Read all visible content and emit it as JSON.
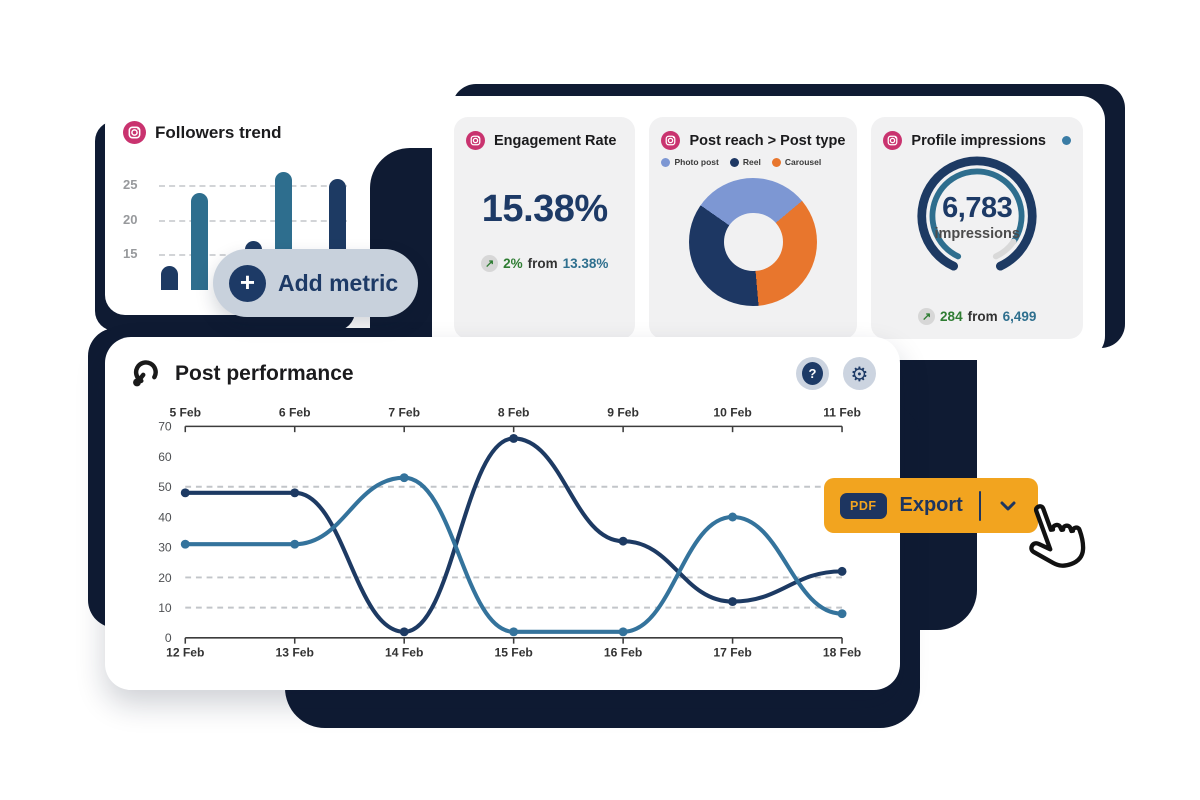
{
  "cards": {
    "followers": {
      "title": "Followers trend"
    },
    "metrics_card": {
      "engagement": {
        "title": "Engagement Rate",
        "value": "15.38%",
        "arrow": "↗",
        "delta": "2%",
        "from": "from",
        "previous": "13.38%"
      },
      "post_reach": {
        "title": "Post reach > Post type",
        "legend": [
          {
            "label": "Photo post",
            "color": "#7d97d3"
          },
          {
            "label": "Reel",
            "color": "#1d3763"
          },
          {
            "label": "Carousel",
            "color": "#e8762d"
          }
        ]
      },
      "impressions": {
        "title": "Profile impressions",
        "value": "6,783",
        "unit": "impressions",
        "arrow": "↗",
        "delta": "284",
        "from": "from",
        "previous": "6,499"
      }
    },
    "performance": {
      "title": "Post performance",
      "help_glyph": "?",
      "settings_glyph": "⚙"
    }
  },
  "buttons": {
    "add_metric": {
      "plus": "+",
      "label": "Add metric"
    },
    "export": {
      "badge": "PDF",
      "label": "Export"
    }
  },
  "colors": {
    "navy_dark": "#0f1b33",
    "navy": "#1d3a63",
    "teal": "#2e6e8e",
    "orange": "#e8762d",
    "periwinkle": "#7d97d3",
    "export_orange": "#f2a41f",
    "pill_bg": "#c8d1dc",
    "panel_bg": "#f1f1f2",
    "green": "#2f7d33",
    "instagram_pink": "#c9336f"
  },
  "chart_data": [
    {
      "type": "bar",
      "title": "Followers trend",
      "values": [
        13.5,
        24,
        17,
        27,
        26
      ],
      "bar_colors": [
        "#1d3a63",
        "#2e6e8e",
        "#1d3a63",
        "#2e6e8e",
        "#1d3a63"
      ],
      "yticks": [
        25,
        20,
        15
      ],
      "value_range": [
        10,
        29
      ],
      "grid": "dashed"
    },
    {
      "type": "pie",
      "title": "Post reach > Post type",
      "start_deg": -55,
      "slices": [
        {
          "label": "Photo post",
          "deg": 105,
          "pct": 29,
          "color": "#7d97d3"
        },
        {
          "label": "Carousel",
          "deg": 125,
          "pct": 35,
          "color": "#e8762d"
        },
        {
          "label": "Reel",
          "deg": 130,
          "pct": 36,
          "color": "#1d3763"
        }
      ],
      "legend_position": "top"
    },
    {
      "type": "gauge",
      "title": "Profile impressions",
      "value": "6,783",
      "label": "impressions",
      "delta": "284",
      "previous": "6,499",
      "arc": {
        "start_deg": 115,
        "end_deg": 65,
        "progress_end_deg": 35,
        "outer_color": "#1d3a63",
        "progress_color": "#2e6e8e",
        "rest_color": "#d9d9d9"
      }
    },
    {
      "type": "line",
      "title": "Post performance",
      "x_top": [
        "5 Feb",
        "6 Feb",
        "7 Feb",
        "8 Feb",
        "9 Feb",
        "10 Feb",
        "11 Feb"
      ],
      "x_bottom": [
        "12 Feb",
        "13 Feb",
        "14 Feb",
        "15 Feb",
        "16 Feb",
        "17 Feb",
        "18 Feb"
      ],
      "ylim": [
        0,
        70
      ],
      "yticks": [
        70,
        60,
        50,
        40,
        30,
        20,
        10,
        0
      ],
      "gridlines": [
        50,
        20,
        10
      ],
      "series": [
        {
          "name": "dark-series",
          "color": "#1d3a63",
          "values": [
            48,
            48,
            2,
            66,
            32,
            12,
            22
          ]
        },
        {
          "name": "teal-series",
          "color": "#34739c",
          "values": [
            31,
            31,
            53,
            2,
            2,
            40,
            8
          ]
        }
      ]
    }
  ]
}
